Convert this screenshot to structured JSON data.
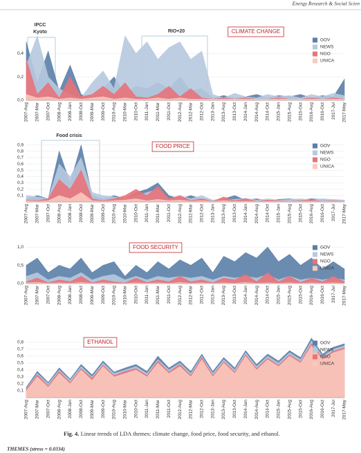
{
  "header": {
    "journal": "Energy Research & Social Scien"
  },
  "chart_data": [
    {
      "type": "area",
      "title": "CLIMATE CHANGE",
      "annotations": [
        "IPCC",
        "Kyoto",
        "RIO+20"
      ],
      "categories": [
        "2007-Aug",
        "2007-Mar",
        "2007-Oct",
        "2008-Aug",
        "2008-Jan",
        "2008-Oct",
        "2009-Mar",
        "2009-Oct",
        "2010-Aug",
        "2010-Mar",
        "2010-Oct",
        "2011-Jan",
        "2011-Mar",
        "2011-Oct",
        "2012-Aug",
        "2012-Mar",
        "2012-Oct",
        "2013-Jan",
        "2013-Aug",
        "2013-Oct",
        "2014-Jan",
        "2014-Aug",
        "2014-Oct",
        "2015-Jan",
        "2015-Aug",
        "2015-Oct",
        "2016-Aug",
        "2016-Oct",
        "2017-Jul",
        "2017-May"
      ],
      "series": [
        {
          "name": "GOV",
          "color": "#5b7fa8",
          "values": [
            0.5,
            0.15,
            0.42,
            0.08,
            0.3,
            0.05,
            0.02,
            0.1,
            0.2,
            0.05,
            0.12,
            0.1,
            0.15,
            0.1,
            0.2,
            0.08,
            0.1,
            0.02,
            0.04,
            0.02,
            0.03,
            0.05,
            0.02,
            0.04,
            0.03,
            0.05,
            0.02,
            0.04,
            0.03,
            0.18
          ]
        },
        {
          "name": "NEWS",
          "color": "#b7c9df",
          "values": [
            0.3,
            0.55,
            0.2,
            0.1,
            0.05,
            0.02,
            0.15,
            0.25,
            0.1,
            0.55,
            0.4,
            0.5,
            0.35,
            0.45,
            0.5,
            0.35,
            0.42,
            0.05,
            0.02,
            0.06,
            0.03,
            0.02,
            0.05,
            0.03,
            0.04,
            0.02,
            0.05,
            0.03,
            0.06,
            0.04
          ]
        },
        {
          "name": "NGO",
          "color": "#e8737a",
          "values": [
            0.35,
            0.05,
            0.15,
            0.02,
            0.2,
            0.03,
            0.05,
            0.12,
            0.05,
            0.15,
            0.03,
            0.02,
            0.05,
            0.12,
            0.03,
            0.1,
            0.02,
            0.01,
            0.02,
            0.01,
            0.02,
            0.01,
            0.01,
            0.02,
            0.01,
            0.01,
            0.02,
            0.01,
            0.02,
            0.01
          ]
        },
        {
          "name": "UNICA",
          "color": "#f9c9bc",
          "values": [
            0.05,
            0.02,
            0.03,
            0.01,
            0.02,
            0.01,
            0.02,
            0.03,
            0.01,
            0.02,
            0.01,
            0.01,
            0.02,
            0.01,
            0.02,
            0.01,
            0.01,
            0.01,
            0.01,
            0.01,
            0.01,
            0.01,
            0.01,
            0.01,
            0.01,
            0.01,
            0.01,
            0.01,
            0.01,
            0.01
          ]
        }
      ],
      "ylim": [
        0,
        0.55
      ],
      "yticks": [
        {
          "value": 0,
          "label": "0,0"
        },
        {
          "value": 0.2,
          "label": "0,2"
        },
        {
          "value": 0.4,
          "label": "0,4"
        }
      ],
      "grid": true
    },
    {
      "type": "area",
      "title": "FOOD PRICE",
      "annotations": [
        "Food crisis"
      ],
      "categories": [
        "2007-Aug",
        "2007-Mar",
        "2007-Oct",
        "2008-Aug",
        "2008-Jan",
        "2008-Oct",
        "2009-Mar",
        "2009-Oct",
        "2010-Aug",
        "2010-Mar",
        "2010-Oct",
        "2011-Jan",
        "2011-Mar",
        "2011-Oct",
        "2012-Aug",
        "2012-Mar",
        "2012-Oct",
        "2013-Jan",
        "2013-Aug",
        "2013-Oct",
        "2014-Jan",
        "2014-Aug",
        "2014-Oct",
        "2015-Jan",
        "2015-Aug",
        "2015-Oct",
        "2016-Aug",
        "2016-Oct",
        "2017-Jul",
        "2017-May"
      ],
      "series": [
        {
          "name": "GOV",
          "color": "#5b7fa8",
          "values": [
            0.05,
            0.1,
            0.05,
            0.8,
            0.3,
            0.9,
            0.1,
            0.05,
            0.1,
            0.05,
            0.15,
            0.2,
            0.3,
            0.1,
            0.05,
            0.1,
            0.05,
            0.02,
            0.05,
            0.1,
            0.03,
            0.05,
            0.02,
            0.04,
            0.05,
            0.03,
            0.05,
            0.04,
            0.02,
            0.03
          ]
        },
        {
          "name": "NEWS",
          "color": "#b7c9df",
          "values": [
            0.1,
            0.08,
            0.05,
            0.6,
            0.4,
            0.7,
            0.15,
            0.1,
            0.08,
            0.05,
            0.1,
            0.15,
            0.2,
            0.05,
            0.1,
            0.05,
            0.1,
            0.03,
            0.05,
            0.04,
            0.06,
            0.03,
            0.05,
            0.03,
            0.04,
            0.05,
            0.03,
            0.05,
            0.04,
            0.03
          ]
        },
        {
          "name": "NGO",
          "color": "#e8737a",
          "values": [
            0.03,
            0.02,
            0.05,
            0.35,
            0.2,
            0.5,
            0.05,
            0.02,
            0.05,
            0.1,
            0.2,
            0.1,
            0.25,
            0.05,
            0.1,
            0.02,
            0.05,
            0.01,
            0.08,
            0.02,
            0.05,
            0.01,
            0.03,
            0.02,
            0.01,
            0.02,
            0.03,
            0.01,
            0.02,
            0.01
          ]
        },
        {
          "name": "UNICA",
          "color": "#f9c9bc",
          "values": [
            0.02,
            0.01,
            0.02,
            0.1,
            0.05,
            0.15,
            0.02,
            0.01,
            0.02,
            0.03,
            0.05,
            0.02,
            0.04,
            0.02,
            0.03,
            0.01,
            0.02,
            0.01,
            0.02,
            0.01,
            0.01,
            0.01,
            0.01,
            0.01,
            0.01,
            0.01,
            0.01,
            0.01,
            0.01,
            0.01
          ]
        }
      ],
      "ylim": [
        0,
        0.95
      ],
      "yticks": [
        {
          "value": 0.1,
          "label": "0,1"
        },
        {
          "value": 0.2,
          "label": "0,2"
        },
        {
          "value": 0.3,
          "label": "0,3"
        },
        {
          "value": 0.4,
          "label": "0,4"
        },
        {
          "value": 0.5,
          "label": "0,5"
        },
        {
          "value": 0.6,
          "label": "0,6"
        },
        {
          "value": 0.7,
          "label": "0,7"
        },
        {
          "value": 0.8,
          "label": "0,8"
        },
        {
          "value": 0.9,
          "label": "0,9"
        }
      ],
      "grid": true
    },
    {
      "type": "area",
      "title": "FOOD SECURITY",
      "annotations": [],
      "categories": [
        "2007-Aug",
        "2007-Mar",
        "2007-Oct",
        "2008-Aug",
        "2008-Jan",
        "2008-Oct",
        "2009-Mar",
        "2009-Oct",
        "2010-Aug",
        "2010-Mar",
        "2010-Oct",
        "2011-Jan",
        "2011-Mar",
        "2011-Oct",
        "2012-Aug",
        "2012-Mar",
        "2012-Oct",
        "2013-Jan",
        "2013-Aug",
        "2013-Oct",
        "2014-Jan",
        "2014-Aug",
        "2014-Oct",
        "2015-Jan",
        "2015-Aug",
        "2015-Oct",
        "2016-Aug",
        "2016-Oct",
        "2017-Jul",
        "2017-May"
      ],
      "series": [
        {
          "name": "GOV",
          "color": "#5b7fa8",
          "values": [
            0.5,
            0.7,
            0.3,
            0.5,
            0.4,
            0.7,
            0.3,
            0.5,
            0.6,
            0.2,
            0.5,
            0.3,
            0.6,
            0.4,
            0.65,
            0.5,
            0.7,
            0.3,
            0.75,
            0.6,
            0.85,
            0.7,
            1.0,
            0.6,
            0.8,
            0.5,
            0.7,
            0.4,
            0.6,
            0.4
          ]
        },
        {
          "name": "NEWS",
          "color": "#b7c9df",
          "values": [
            0.2,
            0.3,
            0.1,
            0.2,
            0.15,
            0.3,
            0.1,
            0.2,
            0.25,
            0.1,
            0.2,
            0.1,
            0.2,
            0.15,
            0.2,
            0.15,
            0.2,
            0.1,
            0.2,
            0.15,
            0.2,
            0.15,
            0.25,
            0.1,
            0.2,
            0.1,
            0.15,
            0.1,
            0.15,
            0.1
          ]
        },
        {
          "name": "NGO",
          "color": "#e8737a",
          "values": [
            0.05,
            0.15,
            0.02,
            0.1,
            0.05,
            0.2,
            0.02,
            0.1,
            0.05,
            0.02,
            0.15,
            0.03,
            0.1,
            0.05,
            0.2,
            0.05,
            0.1,
            0.02,
            0.15,
            0.1,
            0.25,
            0.05,
            0.3,
            0.05,
            0.2,
            0.03,
            0.15,
            0.05,
            0.2,
            0.05
          ]
        },
        {
          "name": "UNICA",
          "color": "#f9c9bc",
          "values": [
            0.02,
            0.03,
            0.01,
            0.02,
            0.01,
            0.03,
            0.01,
            0.02,
            0.01,
            0.01,
            0.02,
            0.01,
            0.02,
            0.01,
            0.03,
            0.01,
            0.02,
            0.01,
            0.02,
            0.01,
            0.03,
            0.01,
            0.02,
            0.01,
            0.02,
            0.01,
            0.02,
            0.01,
            0.02,
            0.01
          ]
        }
      ],
      "ylim": [
        0,
        1.1
      ],
      "yticks": [
        {
          "value": 0,
          "label": "0,0"
        },
        {
          "value": 0.5,
          "label": "0,5"
        },
        {
          "value": 1,
          "label": "1,0"
        }
      ],
      "grid": true
    },
    {
      "type": "area",
      "title": "ETHANOL",
      "annotations": [],
      "categories": [
        "2007-Aug",
        "2007-Mar",
        "2007-Oct",
        "2008-Aug",
        "2008-Jan",
        "2008-Oct",
        "2009-Mar",
        "2009-Oct",
        "2010-Aug",
        "2010-Mar",
        "2010-Oct",
        "2011-Jan",
        "2011-Mar",
        "2011-Oct",
        "2012-Aug",
        "2012-Mar",
        "2012-Oct",
        "2013-Jan",
        "2013-Aug",
        "2013-Oct",
        "2014-Jan",
        "2014-Aug",
        "2014-Oct",
        "2015-Jan",
        "2015-Aug",
        "2015-Oct",
        "2016-Aug",
        "2016-Oct",
        "2017-Jul",
        "2017-May"
      ],
      "series": [
        {
          "name": "GOV",
          "color": "#5b7fa8",
          "values": [
            0.15,
            0.38,
            0.22,
            0.43,
            0.27,
            0.48,
            0.33,
            0.53,
            0.37,
            0.43,
            0.48,
            0.38,
            0.6,
            0.43,
            0.53,
            0.38,
            0.63,
            0.38,
            0.58,
            0.43,
            0.68,
            0.48,
            0.63,
            0.53,
            0.68,
            0.58,
            0.86,
            0.63,
            0.73,
            0.78
          ]
        },
        {
          "name": "NEWS",
          "color": "#b7c9df",
          "values": [
            0.13,
            0.35,
            0.2,
            0.4,
            0.25,
            0.45,
            0.3,
            0.5,
            0.35,
            0.4,
            0.45,
            0.35,
            0.55,
            0.4,
            0.5,
            0.35,
            0.6,
            0.35,
            0.55,
            0.4,
            0.65,
            0.45,
            0.6,
            0.5,
            0.65,
            0.55,
            0.82,
            0.6,
            0.7,
            0.75
          ]
        },
        {
          "name": "NGO",
          "color": "#e8737a",
          "values": [
            0.12,
            0.33,
            0.17,
            0.38,
            0.22,
            0.42,
            0.28,
            0.47,
            0.32,
            0.38,
            0.42,
            0.32,
            0.53,
            0.37,
            0.48,
            0.32,
            0.58,
            0.32,
            0.52,
            0.37,
            0.62,
            0.42,
            0.57,
            0.47,
            0.62,
            0.52,
            0.78,
            0.57,
            0.67,
            0.72
          ]
        },
        {
          "name": "UNICA",
          "color": "#f9c9bc",
          "values": [
            0.1,
            0.3,
            0.15,
            0.35,
            0.2,
            0.4,
            0.25,
            0.45,
            0.3,
            0.35,
            0.4,
            0.3,
            0.5,
            0.35,
            0.45,
            0.3,
            0.55,
            0.3,
            0.5,
            0.35,
            0.6,
            0.4,
            0.55,
            0.45,
            0.6,
            0.5,
            0.75,
            0.55,
            0.65,
            0.7
          ]
        }
      ],
      "ylim": [
        0,
        0.85
      ],
      "yticks": [
        {
          "value": 0.1,
          "label": "0,1"
        },
        {
          "value": 0.2,
          "label": "0,2"
        },
        {
          "value": 0.3,
          "label": "0,3"
        },
        {
          "value": 0.4,
          "label": "0,4"
        },
        {
          "value": 0.5,
          "label": "0,5"
        },
        {
          "value": 0.6,
          "label": "0,6"
        },
        {
          "value": 0.7,
          "label": "0,7"
        },
        {
          "value": 0.8,
          "label": "0,8"
        }
      ],
      "grid": true
    }
  ],
  "caption": {
    "label": "Fig. 4.",
    "text": "Linear trends of LDA themes: climate change, food price, food security, and ethanol."
  },
  "footer": {
    "text": "THEMES (stress = 0.0334)"
  }
}
